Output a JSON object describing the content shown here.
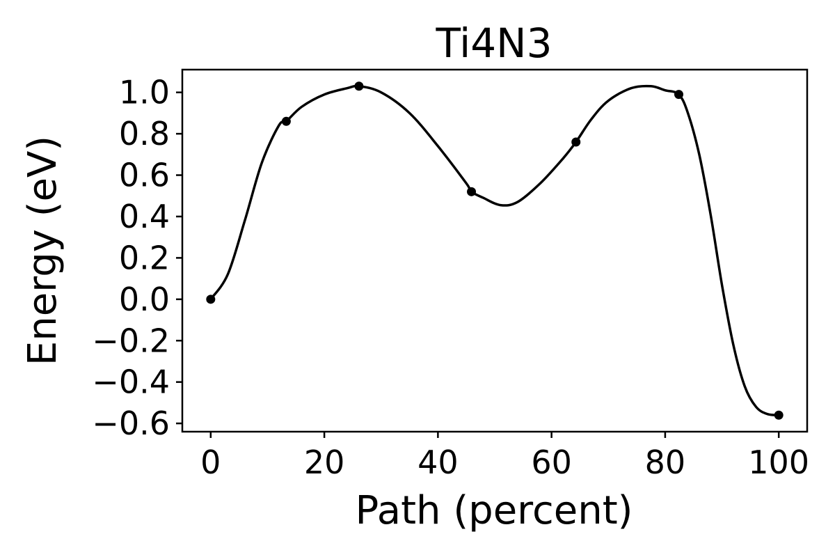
{
  "chart_data": {
    "type": "line",
    "title": "Ti4N3",
    "xlabel": "Path (percent)",
    "ylabel": "Energy (eV)",
    "xlim": [
      -5,
      105
    ],
    "ylim": [
      -0.64,
      1.11
    ],
    "xticks": [
      0,
      20,
      40,
      60,
      80,
      100
    ],
    "xtick_labels": [
      "0",
      "20",
      "40",
      "60",
      "80",
      "100"
    ],
    "yticks": [
      -0.6,
      -0.4,
      -0.2,
      0.0,
      0.2,
      0.4,
      0.6,
      0.8,
      1.0
    ],
    "ytick_labels": [
      "−0.6",
      "−0.4",
      "−0.2",
      "0.0",
      "0.2",
      "0.4",
      "0.6",
      "0.8",
      "1.0"
    ],
    "grid": false,
    "legend": "none",
    "colors": {
      "line": "#000000",
      "markers": "#000000"
    },
    "series": [
      {
        "style": "markers",
        "x": [
          0,
          13.3,
          26.1,
          45.9,
          64.3,
          82.4,
          100
        ],
        "y": [
          0.0,
          0.86,
          1.03,
          0.52,
          0.76,
          0.99,
          -0.56
        ]
      },
      {
        "style": "smooth-line",
        "x": [
          0,
          3,
          6,
          9,
          12,
          13.3,
          16,
          20,
          24,
          26.1,
          30,
          35,
          40,
          45,
          45.9,
          48,
          51,
          54,
          58,
          62,
          64.3,
          67,
          70,
          74,
          77.5,
          80,
          82.4,
          84,
          86,
          88,
          90,
          92,
          94,
          96,
          98,
          100
        ],
        "y": [
          0.0,
          0.12,
          0.38,
          0.66,
          0.84,
          0.86,
          0.93,
          0.99,
          1.02,
          1.03,
          1.0,
          0.9,
          0.74,
          0.56,
          0.52,
          0.49,
          0.455,
          0.47,
          0.56,
          0.68,
          0.76,
          0.87,
          0.96,
          1.02,
          1.03,
          1.01,
          0.99,
          0.9,
          0.7,
          0.41,
          0.07,
          -0.22,
          -0.42,
          -0.52,
          -0.555,
          -0.56
        ]
      }
    ]
  }
}
